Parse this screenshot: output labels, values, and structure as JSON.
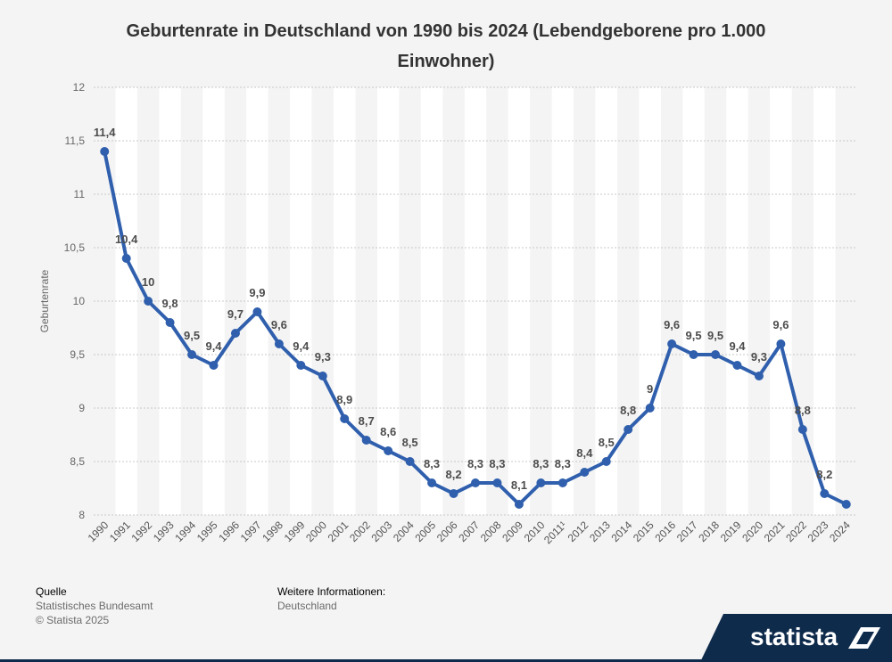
{
  "header": {
    "title": "Geburtenrate in Deutschland von 1990 bis 2024 (Lebendgeborene pro 1.000 Einwohner)"
  },
  "chart_data": {
    "type": "line",
    "title": "Geburtenrate in Deutschland von 1990 bis 2024 (Lebendgeborene pro 1.000 Einwohner)",
    "xlabel": "",
    "ylabel": "Geburtenrate",
    "ylim": [
      8,
      12
    ],
    "yticks": [
      8,
      8.5,
      9,
      9.5,
      10,
      10.5,
      11,
      11.5,
      12
    ],
    "ytick_labels": [
      "8",
      "8,5",
      "9",
      "9,5",
      "10",
      "10,5",
      "11",
      "11,5",
      "12"
    ],
    "grid": true,
    "line_color": "#2f5fad",
    "categories": [
      "1990",
      "1991",
      "1992",
      "1993",
      "1994",
      "1995",
      "1996",
      "1997",
      "1998",
      "1999",
      "2000",
      "2001",
      "2002",
      "2003",
      "2004",
      "2005",
      "2006",
      "2007",
      "2008",
      "2009",
      "2010",
      "2011¹",
      "2012",
      "2013",
      "2014",
      "2015",
      "2016",
      "2017",
      "2018",
      "2019",
      "2020",
      "2021",
      "2022",
      "2023",
      "2024"
    ],
    "values": [
      11.4,
      10.4,
      10,
      9.8,
      9.5,
      9.4,
      9.7,
      9.9,
      9.6,
      9.4,
      9.3,
      8.9,
      8.7,
      8.6,
      8.5,
      8.3,
      8.2,
      8.3,
      8.3,
      8.1,
      8.3,
      8.3,
      8.4,
      8.5,
      8.8,
      9,
      9.6,
      9.5,
      9.5,
      9.4,
      9.3,
      9.6,
      8.8,
      8.2,
      8.1
    ],
    "data_labels": [
      "11,4",
      "10,4",
      "10",
      "9,8",
      "9,5",
      "9,4",
      "9,7",
      "9,9",
      "9,6",
      "9,4",
      "9,3",
      "8,9",
      "8,7",
      "8,6",
      "8,5",
      "8,3",
      "8,2",
      "8,3",
      "8,3",
      "8,1",
      "8,3",
      "8,3",
      "8,4",
      "8,5",
      "8,8",
      "9",
      "9,6",
      "9,5",
      "9,5",
      "9,4",
      "9,3",
      "9,6",
      "8,8",
      "8,2",
      ""
    ]
  },
  "footer": {
    "source_heading": "Quelle",
    "source_lines": [
      "Statistisches Bundesamt",
      "© Statista 2025"
    ],
    "info_heading": "Weitere Informationen:",
    "info_text": "Deutschland"
  },
  "brand": {
    "name": "statista"
  }
}
